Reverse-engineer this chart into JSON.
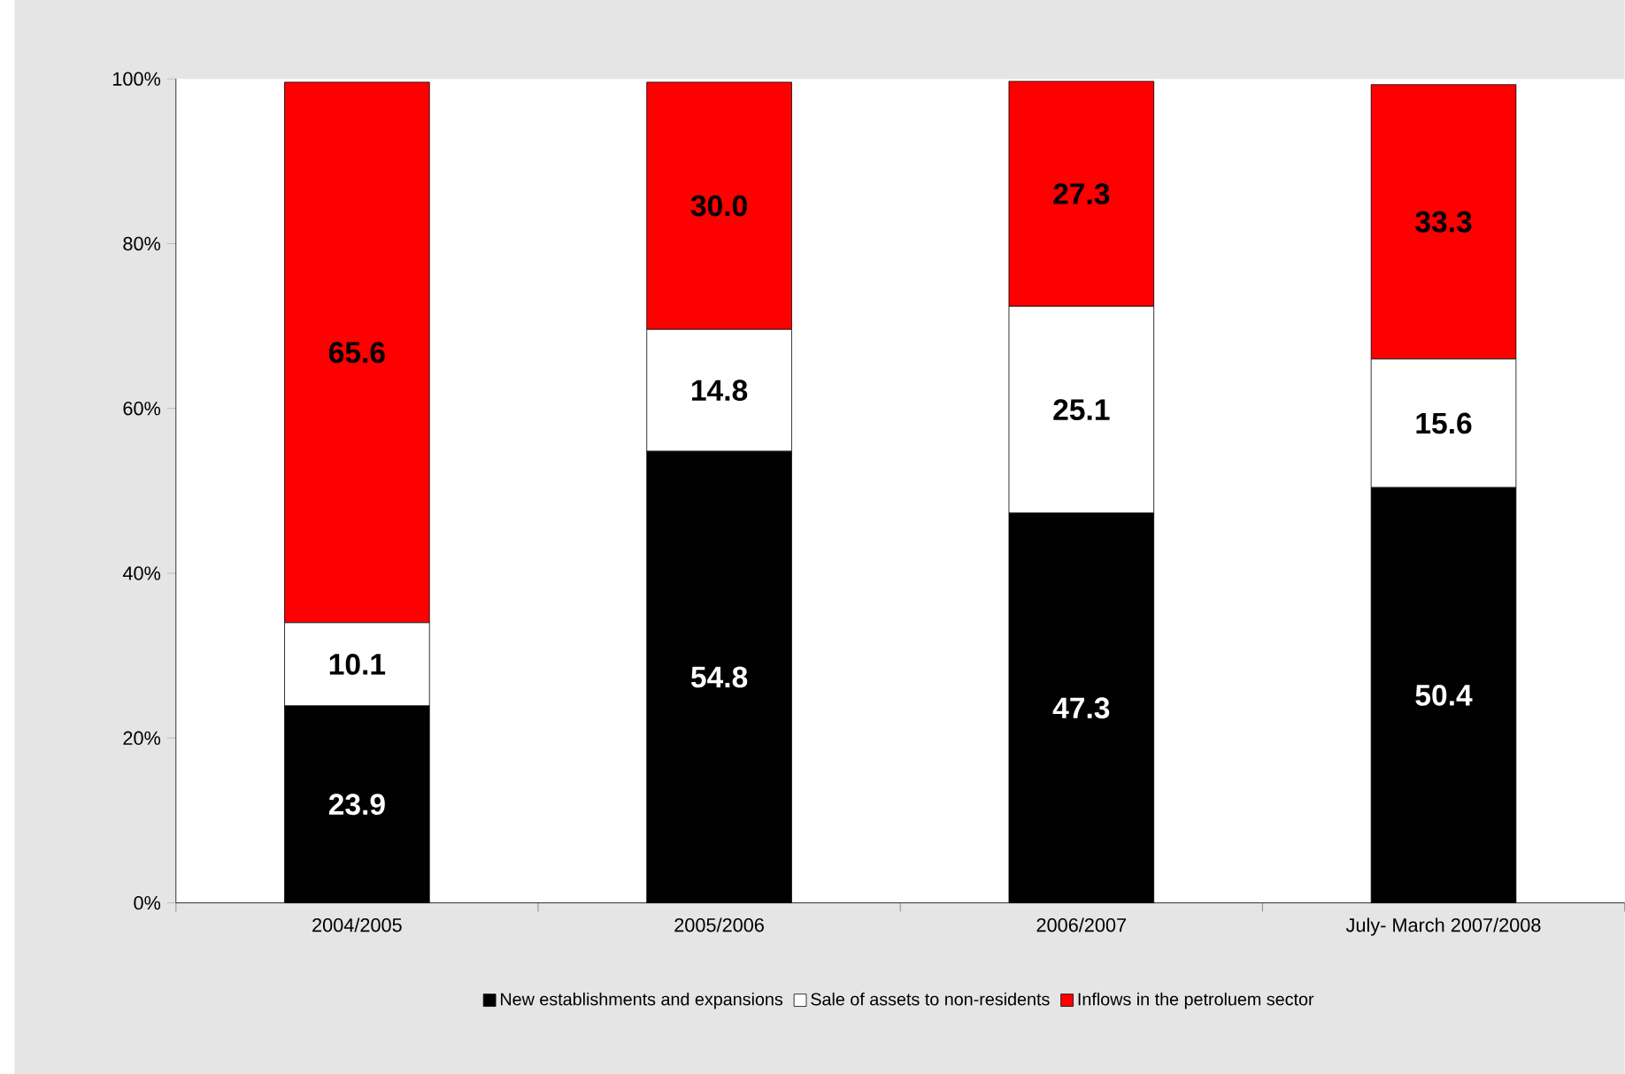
{
  "chart_data": {
    "type": "bar",
    "stacked": true,
    "categories": [
      "2004/2005",
      "2005/2006",
      "2006/2007",
      "July- March 2007/2008"
    ],
    "series": [
      {
        "name": "New establishments and expansions",
        "color": "#000000",
        "values": [
          23.9,
          54.8,
          47.3,
          50.4
        ],
        "value_labels": [
          "23.9",
          "54.8",
          "47.3",
          "50.4"
        ]
      },
      {
        "name": "Sale of assets to non-residents",
        "color": "#ffffff",
        "values": [
          10.1,
          14.8,
          25.1,
          15.6
        ],
        "value_labels": [
          "10.1",
          "14.8",
          "25.1",
          "15.6"
        ]
      },
      {
        "name": "Inflows in the petroluem sector",
        "color": "#ff0000",
        "values": [
          65.6,
          30.0,
          27.3,
          33.3
        ],
        "value_labels": [
          "65.6",
          "30.0",
          "27.3",
          "33.3"
        ]
      }
    ],
    "ylim": [
      0,
      100
    ],
    "yticks": [
      {
        "value": 0,
        "label": "0%"
      },
      {
        "value": 20,
        "label": "20%"
      },
      {
        "value": 40,
        "label": "40%"
      },
      {
        "value": 60,
        "label": "60%"
      },
      {
        "value": 80,
        "label": "80%"
      },
      {
        "value": 100,
        "label": "100%"
      }
    ],
    "legend": "bottom",
    "grid": false
  }
}
